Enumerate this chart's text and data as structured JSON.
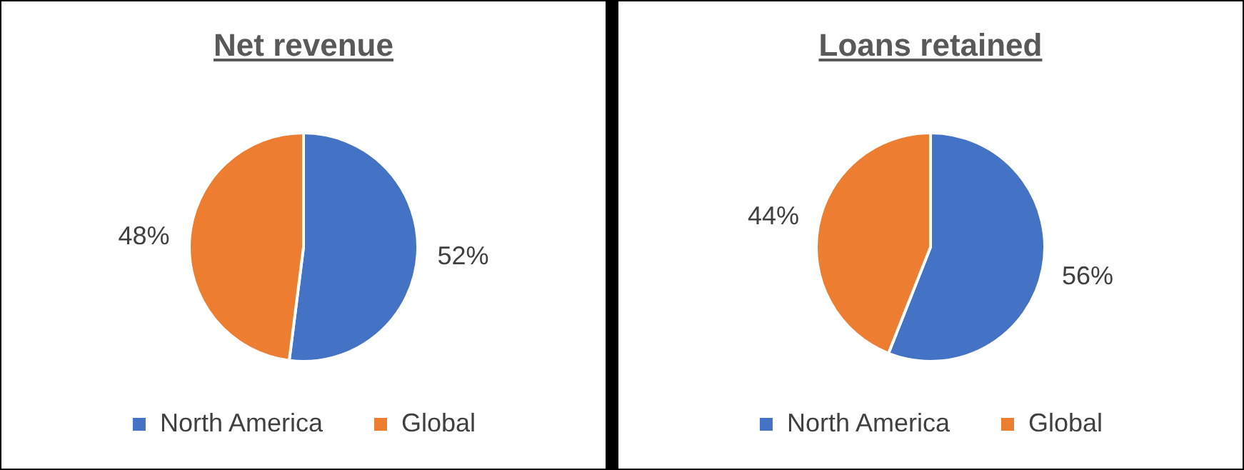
{
  "chart_data": [
    {
      "type": "pie",
      "title": "Net revenue",
      "categories": [
        "North America",
        "Global"
      ],
      "values": [
        52,
        48
      ],
      "colors": [
        "#4472c4",
        "#ed7d31"
      ],
      "value_labels": [
        "52%",
        "48%"
      ],
      "legend": "bottom"
    },
    {
      "type": "pie",
      "title": "Loans retained",
      "categories": [
        "North America",
        "Global"
      ],
      "values": [
        56,
        44
      ],
      "colors": [
        "#4472c4",
        "#ed7d31"
      ],
      "value_labels": [
        "56%",
        "44%"
      ],
      "legend": "bottom"
    }
  ]
}
